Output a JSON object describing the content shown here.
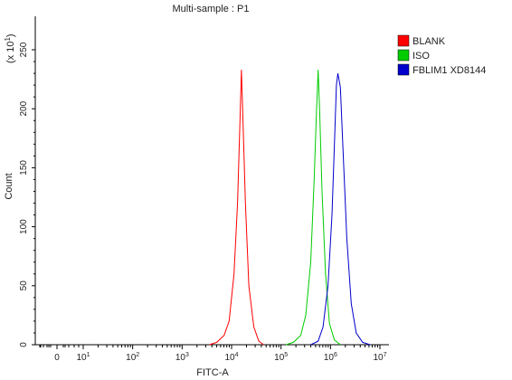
{
  "chart_data": {
    "type": "line",
    "title": "Multi-sample : P1",
    "xlabel": "FITC-A",
    "ylabel": "Count",
    "y_multiplier_label": "(x 10",
    "y_multiplier_exp": "1",
    "y_multiplier_close": ")",
    "x_scale": "biexponential-log",
    "x_tick_labels": [
      {
        "label": "0",
        "exp": ""
      },
      {
        "label": "10",
        "exp": "1"
      },
      {
        "label": "10",
        "exp": "2"
      },
      {
        "label": "10",
        "exp": "3"
      },
      {
        "label": "10",
        "exp": "4"
      },
      {
        "label": "10",
        "exp": "5"
      },
      {
        "label": "10",
        "exp": "6"
      },
      {
        "label": "10",
        "exp": "7"
      }
    ],
    "y_ticks": [
      0,
      50,
      100,
      150,
      200,
      250
    ],
    "ylim": [
      0,
      265
    ],
    "grid": false,
    "legend_position": "top-right",
    "series": [
      {
        "name": "BLANK",
        "color": "#ff0000",
        "peak_log10_x": 4.2,
        "peak_count": 233,
        "points": [
          [
            3.55,
            0
          ],
          [
            3.7,
            2
          ],
          [
            3.85,
            8
          ],
          [
            3.95,
            20
          ],
          [
            4.05,
            60
          ],
          [
            4.12,
            120
          ],
          [
            4.17,
            190
          ],
          [
            4.2,
            233
          ],
          [
            4.23,
            190
          ],
          [
            4.28,
            120
          ],
          [
            4.35,
            50
          ],
          [
            4.45,
            15
          ],
          [
            4.55,
            3
          ],
          [
            4.65,
            0
          ]
        ]
      },
      {
        "name": "ISO",
        "color": "#00cc00",
        "peak_log10_x": 5.75,
        "peak_count": 233,
        "points": [
          [
            5.1,
            0
          ],
          [
            5.25,
            2
          ],
          [
            5.4,
            8
          ],
          [
            5.5,
            25
          ],
          [
            5.6,
            70
          ],
          [
            5.67,
            140
          ],
          [
            5.72,
            200
          ],
          [
            5.75,
            233
          ],
          [
            5.78,
            200
          ],
          [
            5.83,
            130
          ],
          [
            5.9,
            60
          ],
          [
            5.98,
            18
          ],
          [
            6.08,
            4
          ],
          [
            6.2,
            0
          ]
        ]
      },
      {
        "name": "FBLIM1 XD8144",
        "color": "#0000cc",
        "peak_log10_x": 6.15,
        "peak_count": 230,
        "points": [
          [
            5.6,
            0
          ],
          [
            5.75,
            3
          ],
          [
            5.85,
            15
          ],
          [
            5.95,
            50
          ],
          [
            6.03,
            110
          ],
          [
            6.08,
            170
          ],
          [
            6.12,
            220
          ],
          [
            6.15,
            230
          ],
          [
            6.2,
            218
          ],
          [
            6.26,
            160
          ],
          [
            6.33,
            90
          ],
          [
            6.42,
            35
          ],
          [
            6.52,
            10
          ],
          [
            6.65,
            2
          ],
          [
            6.8,
            0
          ]
        ]
      }
    ]
  }
}
